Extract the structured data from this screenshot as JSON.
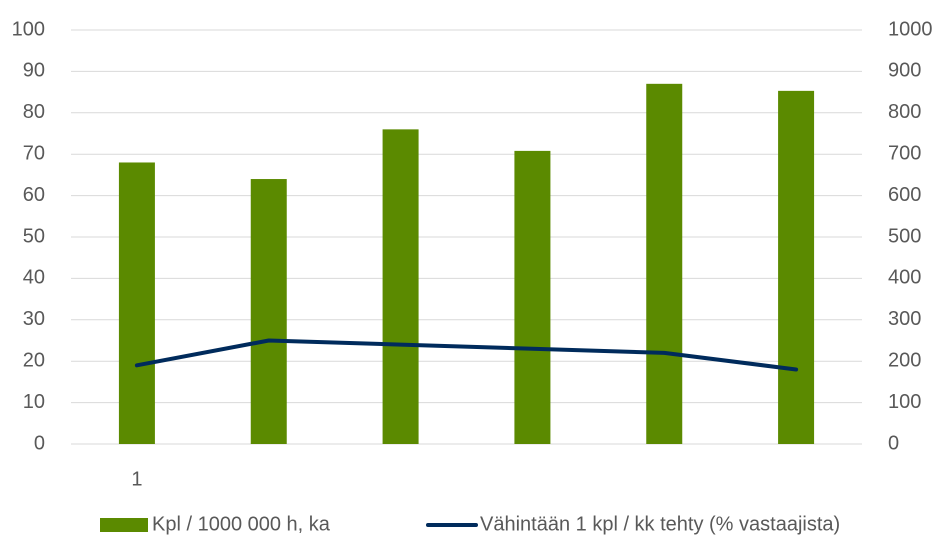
{
  "chart_data": {
    "type": "combo",
    "categories": [
      "1",
      null,
      null,
      null,
      null,
      null
    ],
    "series": [
      {
        "name": "Kpl / 1000 000 h, ka",
        "type": "bar",
        "axis": "y2",
        "color": "#5b8a00",
        "values": [
          680,
          640,
          760,
          708,
          870,
          853
        ]
      },
      {
        "name": "Vähintään 1 kpl / kk tehty (% vastaajista)",
        "type": "line",
        "color": "#002b5c",
        "values": [
          19,
          25,
          24,
          23,
          22,
          18
        ]
      }
    ],
    "ylim": [
      0,
      100
    ],
    "yticks": [
      0,
      10,
      20,
      30,
      40,
      50,
      60,
      70,
      80,
      90,
      100
    ],
    "y2lim": [
      0,
      1000
    ],
    "y2ticks": [
      0,
      100,
      200,
      300,
      400,
      500,
      600,
      700,
      800,
      900,
      1000
    ],
    "grid": true,
    "legend": "bottom"
  }
}
